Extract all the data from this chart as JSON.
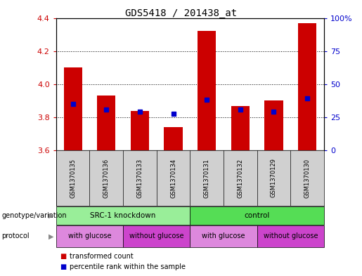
{
  "title": "GDS5418 / 201438_at",
  "samples": [
    "GSM1370135",
    "GSM1370136",
    "GSM1370133",
    "GSM1370134",
    "GSM1370131",
    "GSM1370132",
    "GSM1370129",
    "GSM1370130"
  ],
  "bar_values": [
    4.1,
    3.93,
    3.84,
    3.74,
    4.32,
    3.87,
    3.9,
    4.37
  ],
  "bar_base": 3.6,
  "percentile_values": [
    3.88,
    3.845,
    3.835,
    3.82,
    3.905,
    3.845,
    3.835,
    3.915
  ],
  "ylim": [
    3.6,
    4.4
  ],
  "yticks_left": [
    3.6,
    3.8,
    4.0,
    4.2,
    4.4
  ],
  "yticks_right": [
    0,
    25,
    50,
    75,
    100
  ],
  "bar_color": "#cc0000",
  "percentile_color": "#0000cc",
  "plot_bg": "#ffffff",
  "sample_bg": "#d0d0d0",
  "genotype_groups": [
    {
      "label": "SRC-1 knockdown",
      "start": 0,
      "end": 4,
      "color": "#99ee99"
    },
    {
      "label": "control",
      "start": 4,
      "end": 8,
      "color": "#55dd55"
    }
  ],
  "protocol_groups": [
    {
      "label": "with glucose",
      "start": 0,
      "end": 2,
      "color": "#dd88dd"
    },
    {
      "label": "without glucose",
      "start": 2,
      "end": 4,
      "color": "#cc44cc"
    },
    {
      "label": "with glucose",
      "start": 4,
      "end": 6,
      "color": "#dd88dd"
    },
    {
      "label": "without glucose",
      "start": 6,
      "end": 8,
      "color": "#cc44cc"
    }
  ],
  "legend_items": [
    {
      "label": "transformed count",
      "color": "#cc0000"
    },
    {
      "label": "percentile rank within the sample",
      "color": "#0000cc"
    }
  ],
  "genotype_label": "genotype/variation",
  "protocol_label": "protocol"
}
